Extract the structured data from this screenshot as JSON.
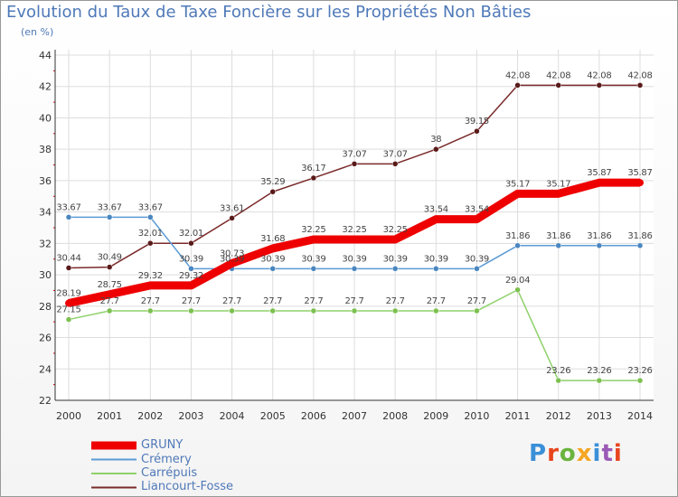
{
  "title": "Evolution du Taux de Taxe Foncière sur les Propriétés Non Bâties",
  "unit": "(en %)",
  "logo": {
    "text": "Proxiti",
    "colors": [
      "#3a8fd8",
      "#e8451e",
      "#6ab43e",
      "#f5a623",
      "#3a8fd8",
      "#9b59b6",
      "#e8451e"
    ]
  },
  "chart_data": {
    "type": "line",
    "x": [
      "2000",
      "2001",
      "2002",
      "2003",
      "2004",
      "2005",
      "2006",
      "2007",
      "2008",
      "2009",
      "2010",
      "2011",
      "2012",
      "2013",
      "2014"
    ],
    "ylim": [
      22,
      44
    ],
    "yticks": [
      22,
      24,
      26,
      28,
      30,
      32,
      34,
      36,
      38,
      40,
      42,
      44
    ],
    "grid": true,
    "legend_position": "bottom-left",
    "series": [
      {
        "name": "Liancourt-Fosse",
        "color": "#7a2a2a",
        "marker": "#5a1a1a",
        "values": [
          30.44,
          30.49,
          32.01,
          32.01,
          33.61,
          35.29,
          36.17,
          37.07,
          37.07,
          38,
          39.15,
          42.08,
          42.08,
          42.08,
          42.08
        ],
        "labels": [
          "30.44",
          "30.49",
          "32.01",
          "32.01",
          "33.61",
          "35.29",
          "36.17",
          "37.07",
          "37.07",
          "38",
          "39.15",
          "42.08",
          "42.08",
          "42.08",
          "42.08"
        ]
      },
      {
        "name": "Crémery",
        "color": "#5b9bd5",
        "marker": "#4a86c0",
        "values": [
          33.67,
          33.67,
          33.67,
          30.39,
          30.39,
          30.39,
          30.39,
          30.39,
          30.39,
          30.39,
          30.39,
          31.86,
          31.86,
          31.86,
          31.86
        ],
        "labels": [
          "33.67",
          "33.67",
          "33.67",
          "30.39",
          "30.39",
          "30.39",
          "30.39",
          "30.39",
          "30.39",
          "30.39",
          "30.39",
          "31.86",
          "31.86",
          "31.86",
          "31.86"
        ]
      },
      {
        "name": "Carrépuis",
        "color": "#8fd16a",
        "marker": "#7cc050",
        "values": [
          27.15,
          27.7,
          27.7,
          27.7,
          27.7,
          27.7,
          27.7,
          27.7,
          27.7,
          27.7,
          27.7,
          29.04,
          23.26,
          23.26,
          23.26
        ],
        "labels": [
          "27.15",
          "27.7",
          "27.7",
          "27.7",
          "27.7",
          "27.7",
          "27.7",
          "27.7",
          "27.7",
          "27.7",
          "27.7",
          "29.04",
          "23.26",
          "23.26",
          "23.26"
        ]
      },
      {
        "name": "GRUNY",
        "color": "#ee0000",
        "marker": "#ee0000",
        "thick": true,
        "values": [
          28.19,
          28.75,
          29.32,
          29.32,
          30.73,
          31.68,
          32.25,
          32.25,
          32.25,
          33.54,
          33.54,
          35.17,
          35.17,
          35.87,
          35.87
        ],
        "labels": [
          "28.19",
          "28.75",
          "29.32",
          "29.32",
          "30.73",
          "31.68",
          "32.25",
          "32.25",
          "32.25",
          "33.54",
          "33.54",
          "35.17",
          "35.17",
          "35.87",
          "35.87"
        ]
      }
    ],
    "legend": [
      "GRUNY",
      "Crémery",
      "Carrépuis",
      "Liancourt-Fosse"
    ]
  }
}
